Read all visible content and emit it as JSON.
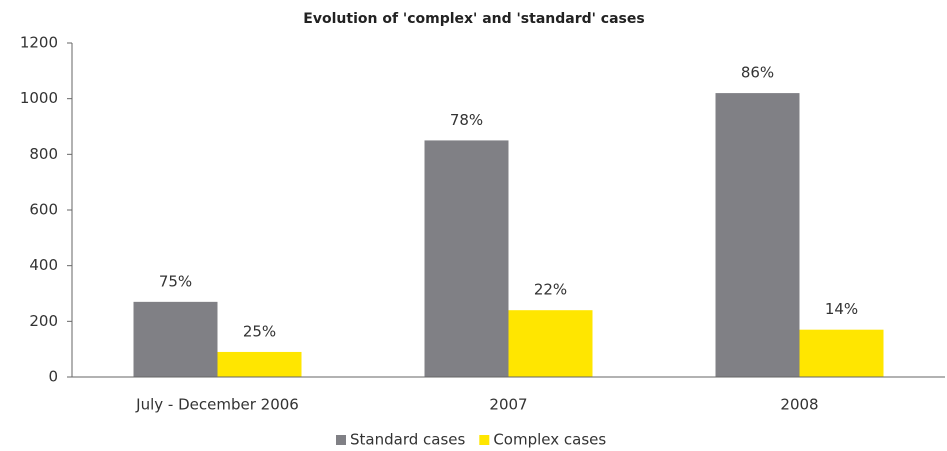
{
  "chart_data": {
    "type": "bar",
    "title": "Evolution of 'complex' and 'standard' cases",
    "categories": [
      "July - December 2006",
      "2007",
      "2008"
    ],
    "series": [
      {
        "name": "Standard cases",
        "color": "#808085",
        "values": [
          270,
          850,
          1020
        ],
        "share_labels": [
          "75%",
          "78%",
          "86%"
        ]
      },
      {
        "name": "Complex cases",
        "color": "#ffe600",
        "values": [
          90,
          240,
          170
        ],
        "share_labels": [
          "25%",
          "22%",
          "14%"
        ]
      }
    ],
    "ylim": [
      0,
      1200
    ],
    "yticks": [
      0,
      200,
      400,
      600,
      800,
      1000,
      1200
    ],
    "grid": false,
    "legend": "bottom"
  }
}
